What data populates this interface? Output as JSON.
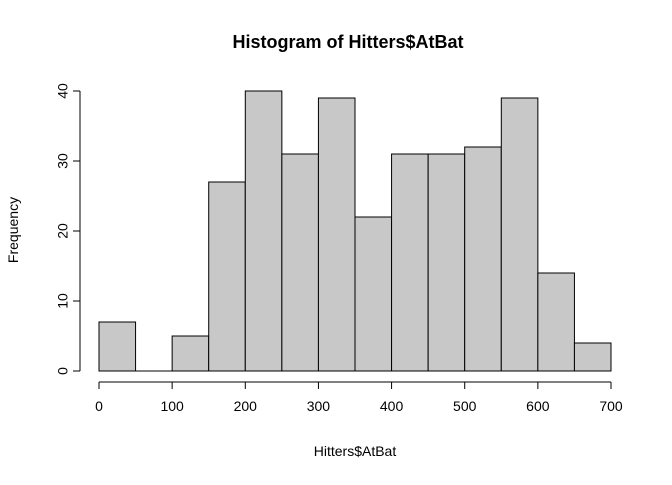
{
  "chart_data": {
    "type": "bar",
    "title": "Histogram of Hitters$AtBat",
    "xlabel": "Hitters$AtBat",
    "ylabel": "Frequency",
    "bins": [
      {
        "x0": 0,
        "x1": 50,
        "count": 7
      },
      {
        "x0": 50,
        "x1": 100,
        "count": 0
      },
      {
        "x0": 100,
        "x1": 150,
        "count": 5
      },
      {
        "x0": 150,
        "x1": 200,
        "count": 27
      },
      {
        "x0": 200,
        "x1": 250,
        "count": 40
      },
      {
        "x0": 250,
        "x1": 300,
        "count": 31
      },
      {
        "x0": 300,
        "x1": 350,
        "count": 39
      },
      {
        "x0": 350,
        "x1": 400,
        "count": 22
      },
      {
        "x0": 400,
        "x1": 450,
        "count": 31
      },
      {
        "x0": 450,
        "x1": 500,
        "count": 31
      },
      {
        "x0": 500,
        "x1": 550,
        "count": 32
      },
      {
        "x0": 550,
        "x1": 600,
        "count": 39
      },
      {
        "x0": 600,
        "x1": 650,
        "count": 14
      },
      {
        "x0": 650,
        "x1": 700,
        "count": 4
      }
    ],
    "xlim": [
      0,
      700
    ],
    "ylim": [
      0,
      40
    ],
    "x_ticks": [
      0,
      100,
      200,
      300,
      400,
      500,
      600,
      700
    ],
    "y_ticks": [
      0,
      10,
      20,
      30,
      40
    ],
    "grid": false,
    "bar_color": "#c8c8c8",
    "border_color": "#000000"
  }
}
